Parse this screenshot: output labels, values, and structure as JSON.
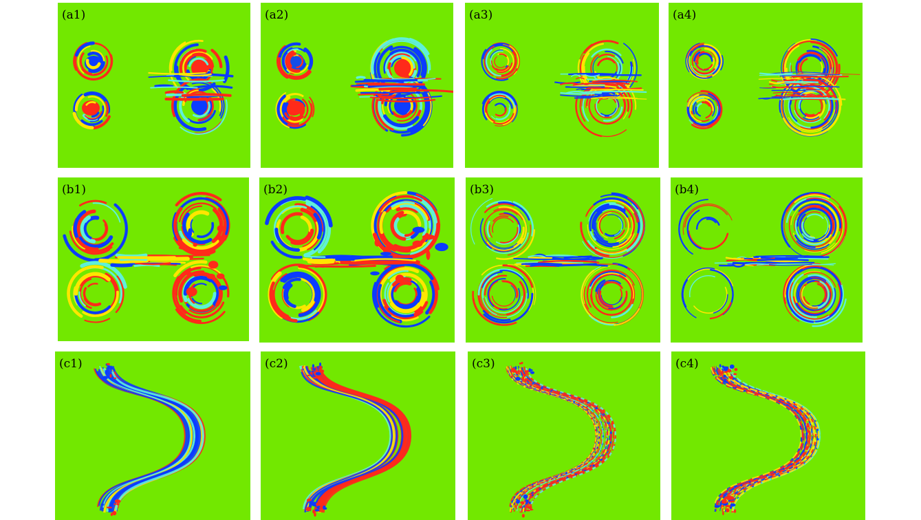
{
  "colors": {
    "background": "#72e800",
    "positive": "#ff2a1a",
    "negative": "#0b3cff",
    "mid": "#ffe600",
    "cyan": "#5ff0d8"
  },
  "panels": [
    {
      "label": "(a1)",
      "pattern": "a",
      "level": 1
    },
    {
      "label": "(a2)",
      "pattern": "a",
      "level": 2
    },
    {
      "label": "(a3)",
      "pattern": "a",
      "level": 3
    },
    {
      "label": "(a4)",
      "pattern": "a",
      "level": 4
    },
    {
      "label": "(b1)",
      "pattern": "b",
      "level": 1
    },
    {
      "label": "(b2)",
      "pattern": "b",
      "level": 2
    },
    {
      "label": "(b3)",
      "pattern": "b",
      "level": 3
    },
    {
      "label": "(b4)",
      "pattern": "b",
      "level": 4
    },
    {
      "label": "(c1)",
      "pattern": "c",
      "level": 1
    },
    {
      "label": "(c2)",
      "pattern": "c",
      "level": 2
    },
    {
      "label": "(c3)",
      "pattern": "c",
      "level": 3
    },
    {
      "label": "(c4)",
      "pattern": "c",
      "level": 4
    }
  ]
}
